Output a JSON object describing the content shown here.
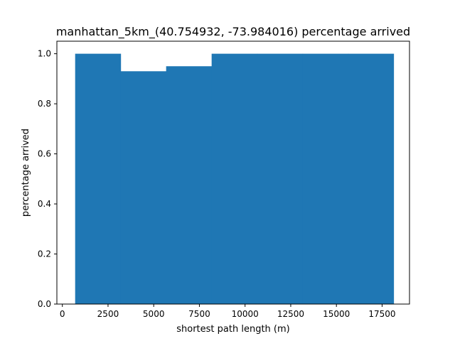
{
  "chart_data": {
    "type": "bar",
    "title": "manhattan_5km_(40.754932, -73.984016) percentage arrived",
    "xlabel": "shortest path length (m)",
    "ylabel": "percentage arrived",
    "xlim": [
      -300,
      19000
    ],
    "ylim": [
      0,
      1.05
    ],
    "xticks": [
      0,
      2500,
      5000,
      7500,
      10000,
      12500,
      15000,
      17500
    ],
    "xtick_labels": [
      "0",
      "2500",
      "5000",
      "7500",
      "10000",
      "12500",
      "15000",
      "17500"
    ],
    "yticks": [
      0.0,
      0.2,
      0.4,
      0.6,
      0.8,
      1.0
    ],
    "ytick_labels": [
      "0.0",
      "0.2",
      "0.4",
      "0.6",
      "0.8",
      "1.0"
    ],
    "bar_color": "#1f77b4",
    "bins": [
      {
        "x0": 700,
        "x1": 3190,
        "value": 1.0
      },
      {
        "x0": 3190,
        "x1": 5680,
        "value": 0.93
      },
      {
        "x0": 5680,
        "x1": 8170,
        "value": 0.95
      },
      {
        "x0": 8170,
        "x1": 10660,
        "value": 1.0
      },
      {
        "x0": 10660,
        "x1": 13150,
        "value": 1.0
      },
      {
        "x0": 13150,
        "x1": 15640,
        "value": 1.0
      },
      {
        "x0": 15640,
        "x1": 18130,
        "value": 1.0
      }
    ],
    "grid": false,
    "legend": "none"
  }
}
